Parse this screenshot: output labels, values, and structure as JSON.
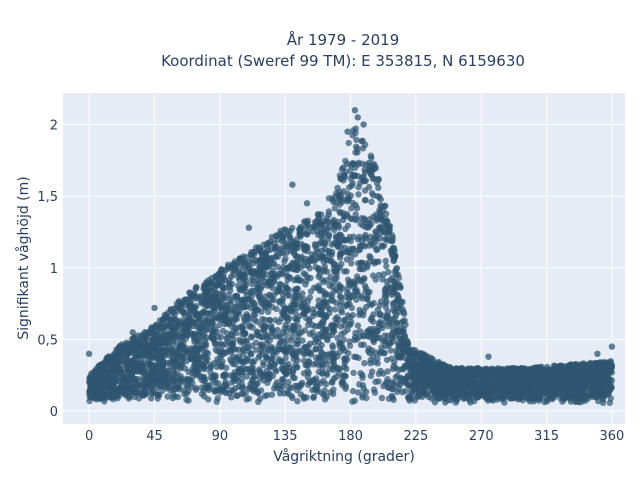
{
  "chart_data": {
    "type": "scatter",
    "title_lines": [
      "År 1979 - 2019",
      "Koordinat (Sweref 99 TM): E 353815, N 6159630"
    ],
    "xlabel": "Vågriktning (grader)",
    "ylabel": "Signifikant våghöjd (m)",
    "xlim": [
      -18,
      369
    ],
    "ylim": [
      -0.09,
      2.22
    ],
    "xticks": [
      0,
      45,
      90,
      135,
      180,
      225,
      270,
      315,
      360
    ],
    "xtick_labels": [
      "0",
      "45",
      "90",
      "135",
      "180",
      "225",
      "270",
      "315",
      "360"
    ],
    "yticks": [
      0,
      0.5,
      1,
      1.5,
      2
    ],
    "ytick_labels": [
      "0",
      "0,5",
      "1",
      "1,5",
      "2"
    ],
    "grid": true,
    "marker_color": "#2f5670",
    "background_color": "#e5ecf6",
    "envelope": {
      "description_free_samples": [
        {
          "x": 0,
          "upper": 0.25
        },
        {
          "x": 20,
          "upper": 0.45
        },
        {
          "x": 45,
          "upper": 0.6
        },
        {
          "x": 70,
          "upper": 0.85
        },
        {
          "x": 100,
          "upper": 1.05
        },
        {
          "x": 130,
          "upper": 1.25
        },
        {
          "x": 155,
          "upper": 1.35
        },
        {
          "x": 170,
          "upper": 1.55
        },
        {
          "x": 182,
          "upper": 2.0
        },
        {
          "x": 195,
          "upper": 1.8
        },
        {
          "x": 210,
          "upper": 1.2
        },
        {
          "x": 220,
          "upper": 0.45
        },
        {
          "x": 250,
          "upper": 0.3
        },
        {
          "x": 300,
          "upper": 0.3
        },
        {
          "x": 360,
          "upper": 0.35
        }
      ]
    },
    "highlight_points": [
      {
        "x": 183,
        "y": 2.1
      },
      {
        "x": 185,
        "y": 2.05
      },
      {
        "x": 189,
        "y": 2.0
      },
      {
        "x": 178,
        "y": 1.95
      },
      {
        "x": 140,
        "y": 1.58
      },
      {
        "x": 175,
        "y": 1.7
      },
      {
        "x": 150,
        "y": 1.45
      },
      {
        "x": 360,
        "y": 0.45
      },
      {
        "x": 350,
        "y": 0.4
      },
      {
        "x": 275,
        "y": 0.38
      },
      {
        "x": 0,
        "y": 0.4
      },
      {
        "x": 30,
        "y": 0.55
      },
      {
        "x": 45,
        "y": 0.72
      },
      {
        "x": 110,
        "y": 1.28
      }
    ]
  }
}
